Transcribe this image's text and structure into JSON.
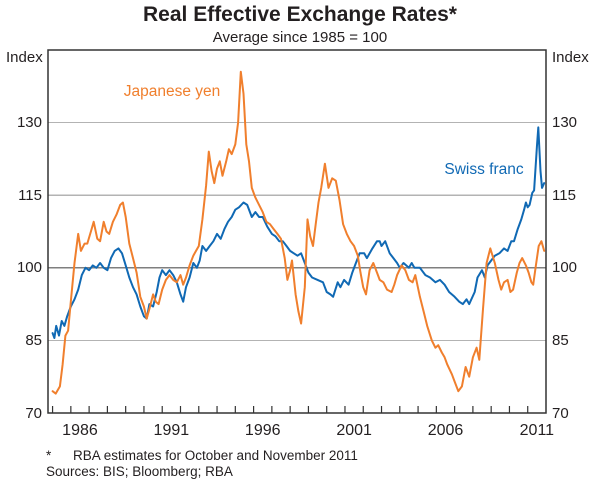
{
  "title": "Real Effective Exchange Rates*",
  "subtitle": "Average since 1985 = 100",
  "y_axis": {
    "left_unit": "Index",
    "right_unit": "Index"
  },
  "footnote": {
    "marker": "*",
    "text": "RBA estimates for October and November 2011"
  },
  "sources": "Sources: BIS; Bloomberg; RBA",
  "colors": {
    "yen": "#F07F2D",
    "franc": "#1069B4",
    "grid": "#B3B3B3",
    "reference_line": "#7F7F7F",
    "frame": "#333333"
  },
  "chart_data": {
    "type": "line",
    "title": "Real Effective Exchange Rates*",
    "subtitle": "Average since 1985 = 100",
    "xlabel": "",
    "ylabel": "Index",
    "x_range": [
      1984.75,
      2012.0
    ],
    "y_range": [
      70,
      145
    ],
    "yticks": [
      70,
      85,
      100,
      115,
      130
    ],
    "xticks": [
      1986,
      1991,
      1996,
      2001,
      2006,
      2011
    ],
    "reference_line": 100,
    "grid": "horizontal",
    "legend_position": "inline-labels",
    "series": [
      {
        "name": "Japanese yen",
        "color": "#F07F2D",
        "points": [
          [
            1985.0,
            74.5
          ],
          [
            1985.17,
            74.0
          ],
          [
            1985.4,
            75.5
          ],
          [
            1985.55,
            80.0
          ],
          [
            1985.7,
            86.0
          ],
          [
            1985.85,
            87.0
          ],
          [
            1986.0,
            93.0
          ],
          [
            1986.2,
            101.0
          ],
          [
            1986.4,
            107.0
          ],
          [
            1986.55,
            103.5
          ],
          [
            1986.75,
            105.0
          ],
          [
            1986.9,
            105.0
          ],
          [
            1987.1,
            107.5
          ],
          [
            1987.25,
            109.5
          ],
          [
            1987.45,
            106.0
          ],
          [
            1987.6,
            105.5
          ],
          [
            1987.8,
            109.5
          ],
          [
            1987.95,
            107.5
          ],
          [
            1988.1,
            107.0
          ],
          [
            1988.3,
            109.5
          ],
          [
            1988.5,
            111.0
          ],
          [
            1988.7,
            113.0
          ],
          [
            1988.85,
            113.5
          ],
          [
            1989.0,
            110.5
          ],
          [
            1989.2,
            105.0
          ],
          [
            1989.4,
            102.0
          ],
          [
            1989.6,
            99.0
          ],
          [
            1989.8,
            94.0
          ],
          [
            1990.0,
            92.0
          ],
          [
            1990.15,
            89.5
          ],
          [
            1990.3,
            91.5
          ],
          [
            1990.5,
            94.5
          ],
          [
            1990.65,
            93.0
          ],
          [
            1990.8,
            92.5
          ],
          [
            1991.0,
            95.5
          ],
          [
            1991.2,
            97.5
          ],
          [
            1991.4,
            98.5
          ],
          [
            1991.6,
            97.5
          ],
          [
            1991.8,
            97.0
          ],
          [
            1992.0,
            98.5
          ],
          [
            1992.15,
            96.5
          ],
          [
            1992.3,
            98.0
          ],
          [
            1992.5,
            100.5
          ],
          [
            1992.7,
            102.5
          ],
          [
            1992.85,
            103.5
          ],
          [
            1993.0,
            104.5
          ],
          [
            1993.2,
            110.0
          ],
          [
            1993.4,
            117.0
          ],
          [
            1993.55,
            124.0
          ],
          [
            1993.7,
            120.0
          ],
          [
            1993.85,
            117.5
          ],
          [
            1994.0,
            120.5
          ],
          [
            1994.15,
            122.0
          ],
          [
            1994.3,
            119.0
          ],
          [
            1994.5,
            122.0
          ],
          [
            1994.65,
            124.5
          ],
          [
            1994.8,
            123.5
          ],
          [
            1995.0,
            125.5
          ],
          [
            1995.15,
            130.0
          ],
          [
            1995.3,
            140.5
          ],
          [
            1995.45,
            136.0
          ],
          [
            1995.6,
            125.5
          ],
          [
            1995.75,
            122.0
          ],
          [
            1995.9,
            116.5
          ],
          [
            1996.1,
            114.5
          ],
          [
            1996.3,
            113.0
          ],
          [
            1996.5,
            111.5
          ],
          [
            1996.7,
            109.5
          ],
          [
            1996.9,
            109.0
          ],
          [
            1997.1,
            108.0
          ],
          [
            1997.3,
            107.0
          ],
          [
            1997.5,
            106.0
          ],
          [
            1997.7,
            102.0
          ],
          [
            1997.85,
            97.5
          ],
          [
            1998.0,
            99.5
          ],
          [
            1998.1,
            101.5
          ],
          [
            1998.3,
            94.5
          ],
          [
            1998.45,
            91.0
          ],
          [
            1998.6,
            88.5
          ],
          [
            1998.8,
            96.0
          ],
          [
            1998.95,
            110.0
          ],
          [
            1999.1,
            106.5
          ],
          [
            1999.25,
            104.5
          ],
          [
            1999.4,
            109.0
          ],
          [
            1999.55,
            113.5
          ],
          [
            1999.7,
            116.5
          ],
          [
            1999.9,
            121.5
          ],
          [
            2000.1,
            116.5
          ],
          [
            2000.3,
            118.5
          ],
          [
            2000.5,
            118.0
          ],
          [
            2000.7,
            114.0
          ],
          [
            2000.9,
            109.0
          ],
          [
            2001.1,
            107.0
          ],
          [
            2001.3,
            105.5
          ],
          [
            2001.5,
            104.5
          ],
          [
            2001.7,
            102.5
          ],
          [
            2001.85,
            99.0
          ],
          [
            2002.0,
            96.0
          ],
          [
            2002.15,
            94.5
          ],
          [
            2002.35,
            99.5
          ],
          [
            2002.55,
            101.0
          ],
          [
            2002.75,
            99.0
          ],
          [
            2002.9,
            97.5
          ],
          [
            2003.1,
            97.0
          ],
          [
            2003.3,
            95.5
          ],
          [
            2003.55,
            95.0
          ],
          [
            2003.7,
            96.5
          ],
          [
            2003.85,
            98.5
          ],
          [
            2004.1,
            100.5
          ],
          [
            2004.3,
            99.5
          ],
          [
            2004.5,
            97.5
          ],
          [
            2004.7,
            97.0
          ],
          [
            2004.85,
            98.5
          ],
          [
            2005.1,
            94.0
          ],
          [
            2005.3,
            91.0
          ],
          [
            2005.5,
            88.0
          ],
          [
            2005.75,
            85.0
          ],
          [
            2005.95,
            83.5
          ],
          [
            2006.1,
            84.0
          ],
          [
            2006.3,
            82.5
          ],
          [
            2006.45,
            81.5
          ],
          [
            2006.6,
            80.0
          ],
          [
            2006.85,
            78.0
          ],
          [
            2007.0,
            76.5
          ],
          [
            2007.2,
            74.5
          ],
          [
            2007.4,
            75.5
          ],
          [
            2007.6,
            79.5
          ],
          [
            2007.8,
            77.5
          ],
          [
            2008.0,
            81.5
          ],
          [
            2008.2,
            83.5
          ],
          [
            2008.35,
            81.0
          ],
          [
            2008.55,
            91.5
          ],
          [
            2008.75,
            101.0
          ],
          [
            2008.95,
            104.0
          ],
          [
            2009.2,
            101.0
          ],
          [
            2009.4,
            97.5
          ],
          [
            2009.55,
            95.5
          ],
          [
            2009.7,
            97.0
          ],
          [
            2009.9,
            97.5
          ],
          [
            2010.05,
            95.0
          ],
          [
            2010.2,
            95.5
          ],
          [
            2010.4,
            99.0
          ],
          [
            2010.55,
            101.0
          ],
          [
            2010.7,
            102.0
          ],
          [
            2010.9,
            100.5
          ],
          [
            2011.05,
            99.0
          ],
          [
            2011.2,
            97.0
          ],
          [
            2011.3,
            96.5
          ],
          [
            2011.45,
            100.5
          ],
          [
            2011.6,
            104.5
          ],
          [
            2011.75,
            105.5
          ],
          [
            2011.9,
            103.5
          ]
        ]
      },
      {
        "name": "Swiss franc",
        "color": "#1069B4",
        "points": [
          [
            1985.0,
            86.5
          ],
          [
            1985.1,
            85.5
          ],
          [
            1985.2,
            88.0
          ],
          [
            1985.35,
            86.0
          ],
          [
            1985.5,
            89.0
          ],
          [
            1985.65,
            88.0
          ],
          [
            1985.8,
            90.0
          ],
          [
            1986.0,
            92.0
          ],
          [
            1986.2,
            93.5
          ],
          [
            1986.4,
            95.5
          ],
          [
            1986.6,
            98.5
          ],
          [
            1986.8,
            100.0
          ],
          [
            1987.0,
            99.5
          ],
          [
            1987.2,
            100.5
          ],
          [
            1987.4,
            100.0
          ],
          [
            1987.6,
            101.0
          ],
          [
            1987.8,
            100.0
          ],
          [
            1988.0,
            99.5
          ],
          [
            1988.2,
            102.0
          ],
          [
            1988.4,
            103.5
          ],
          [
            1988.6,
            104.0
          ],
          [
            1988.8,
            103.0
          ],
          [
            1989.0,
            100.5
          ],
          [
            1989.2,
            98.0
          ],
          [
            1989.4,
            96.0
          ],
          [
            1989.6,
            94.5
          ],
          [
            1989.8,
            92.0
          ],
          [
            1990.0,
            90.0
          ],
          [
            1990.15,
            89.5
          ],
          [
            1990.3,
            92.5
          ],
          [
            1990.5,
            92.0
          ],
          [
            1990.7,
            95.0
          ],
          [
            1990.85,
            98.0
          ],
          [
            1991.0,
            99.5
          ],
          [
            1991.2,
            98.5
          ],
          [
            1991.4,
            99.5
          ],
          [
            1991.6,
            98.5
          ],
          [
            1991.8,
            97.0
          ],
          [
            1992.0,
            94.5
          ],
          [
            1992.15,
            93.0
          ],
          [
            1992.3,
            96.0
          ],
          [
            1992.5,
            98.0
          ],
          [
            1992.7,
            101.0
          ],
          [
            1992.9,
            100.0
          ],
          [
            1993.05,
            101.5
          ],
          [
            1993.2,
            104.5
          ],
          [
            1993.4,
            103.5
          ],
          [
            1993.6,
            104.5
          ],
          [
            1993.8,
            105.5
          ],
          [
            1994.0,
            107.0
          ],
          [
            1994.2,
            106.0
          ],
          [
            1994.4,
            108.0
          ],
          [
            1994.6,
            109.5
          ],
          [
            1994.8,
            110.5
          ],
          [
            1995.0,
            112.0
          ],
          [
            1995.2,
            112.5
          ],
          [
            1995.45,
            113.5
          ],
          [
            1995.65,
            113.0
          ],
          [
            1995.9,
            110.5
          ],
          [
            1996.1,
            111.5
          ],
          [
            1996.3,
            110.5
          ],
          [
            1996.5,
            110.5
          ],
          [
            1996.75,
            108.5
          ],
          [
            1997.0,
            107.0
          ],
          [
            1997.2,
            106.5
          ],
          [
            1997.4,
            105.5
          ],
          [
            1997.6,
            105.5
          ],
          [
            1997.8,
            104.5
          ],
          [
            1998.0,
            103.5
          ],
          [
            1998.2,
            103.0
          ],
          [
            1998.4,
            102.5
          ],
          [
            1998.6,
            103.0
          ],
          [
            1998.8,
            101.0
          ],
          [
            1999.0,
            99.0
          ],
          [
            1999.2,
            98.0
          ],
          [
            1999.5,
            97.5
          ],
          [
            1999.8,
            97.0
          ],
          [
            2000.0,
            95.0
          ],
          [
            2000.2,
            94.5
          ],
          [
            2000.35,
            94.0
          ],
          [
            2000.6,
            97.0
          ],
          [
            2000.75,
            96.0
          ],
          [
            2000.95,
            97.5
          ],
          [
            2001.2,
            96.5
          ],
          [
            2001.4,
            99.0
          ],
          [
            2001.55,
            100.5
          ],
          [
            2001.8,
            103.0
          ],
          [
            2002.05,
            103.0
          ],
          [
            2002.2,
            102.0
          ],
          [
            2002.5,
            104.0
          ],
          [
            2002.75,
            105.5
          ],
          [
            2002.9,
            105.5
          ],
          [
            2003.0,
            104.5
          ],
          [
            2003.2,
            105.5
          ],
          [
            2003.45,
            103.0
          ],
          [
            2003.65,
            102.0
          ],
          [
            2003.85,
            101.0
          ],
          [
            2004.0,
            100.0
          ],
          [
            2004.2,
            101.0
          ],
          [
            2004.5,
            100.0
          ],
          [
            2004.65,
            101.0
          ],
          [
            2004.8,
            100.0
          ],
          [
            2005.1,
            100.0
          ],
          [
            2005.4,
            98.5
          ],
          [
            2005.65,
            98.0
          ],
          [
            2005.95,
            97.0
          ],
          [
            2006.2,
            97.5
          ],
          [
            2006.45,
            96.5
          ],
          [
            2006.7,
            95.0
          ],
          [
            2007.0,
            94.0
          ],
          [
            2007.25,
            93.0
          ],
          [
            2007.45,
            92.5
          ],
          [
            2007.65,
            93.5
          ],
          [
            2007.8,
            92.5
          ],
          [
            2008.1,
            95.0
          ],
          [
            2008.25,
            98.0
          ],
          [
            2008.5,
            99.5
          ],
          [
            2008.65,
            98.0
          ],
          [
            2008.8,
            100.5
          ],
          [
            2009.0,
            101.5
          ],
          [
            2009.2,
            102.5
          ],
          [
            2009.45,
            103.0
          ],
          [
            2009.7,
            104.0
          ],
          [
            2009.9,
            103.5
          ],
          [
            2010.1,
            105.5
          ],
          [
            2010.25,
            105.5
          ],
          [
            2010.45,
            108.0
          ],
          [
            2010.65,
            110.0
          ],
          [
            2010.8,
            112.0
          ],
          [
            2010.9,
            113.5
          ],
          [
            2011.0,
            112.5
          ],
          [
            2011.1,
            113.0
          ],
          [
            2011.25,
            115.5
          ],
          [
            2011.35,
            116.0
          ],
          [
            2011.5,
            125.0
          ],
          [
            2011.58,
            129.0
          ],
          [
            2011.7,
            120.0
          ],
          [
            2011.78,
            116.5
          ],
          [
            2011.9,
            117.5
          ]
        ]
      }
    ]
  }
}
